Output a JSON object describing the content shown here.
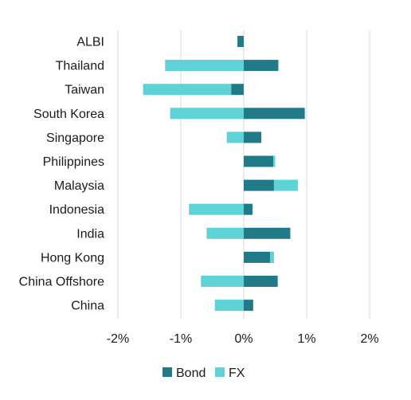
{
  "chart_data": {
    "type": "bar",
    "orientation": "horizontal",
    "stacked": true,
    "categories": [
      "ALBI",
      "Thailand",
      "Taiwan",
      "South Korea",
      "Singapore",
      "Philippines",
      "Malaysia",
      "Indonesia",
      "India",
      "Hong Kong",
      "China Offshore",
      "China"
    ],
    "series": [
      {
        "name": "Bond",
        "color": "#217a87",
        "values": [
          -0.1,
          0.55,
          -0.2,
          0.97,
          0.28,
          0.47,
          0.48,
          0.14,
          0.74,
          0.42,
          0.54,
          0.15
        ]
      },
      {
        "name": "FX",
        "color": "#5dd3d5",
        "values": [
          0.0,
          -1.25,
          -1.4,
          -1.17,
          -0.27,
          0.03,
          0.38,
          -0.87,
          -0.59,
          0.06,
          -0.68,
          -0.46
        ]
      }
    ],
    "xlim": [
      -2,
      2
    ],
    "xticks": [
      -2,
      -1,
      0,
      1,
      2
    ],
    "xtick_labels": [
      "-2%",
      "-1%",
      "0%",
      "1%",
      "2%"
    ],
    "grid": "vertical",
    "legend_position": "bottom",
    "title": "",
    "xlabel": "",
    "ylabel": ""
  }
}
